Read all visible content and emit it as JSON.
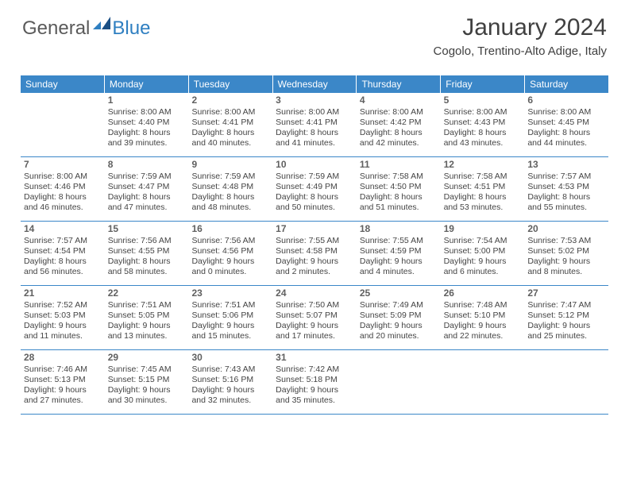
{
  "brand": {
    "word1": "General",
    "word2": "Blue"
  },
  "title": "January 2024",
  "location": "Cogolo, Trentino-Alto Adige, Italy",
  "colors": {
    "accent": "#3b87c8",
    "text": "#404040",
    "body": "#444444",
    "background": "#ffffff"
  },
  "dayHeaders": [
    "Sunday",
    "Monday",
    "Tuesday",
    "Wednesday",
    "Thursday",
    "Friday",
    "Saturday"
  ],
  "weeks": [
    [
      {
        "num": "",
        "sunrise": "",
        "sunset": "",
        "daylight": ""
      },
      {
        "num": "1",
        "sunrise": "Sunrise: 8:00 AM",
        "sunset": "Sunset: 4:40 PM",
        "daylight": "Daylight: 8 hours and 39 minutes."
      },
      {
        "num": "2",
        "sunrise": "Sunrise: 8:00 AM",
        "sunset": "Sunset: 4:41 PM",
        "daylight": "Daylight: 8 hours and 40 minutes."
      },
      {
        "num": "3",
        "sunrise": "Sunrise: 8:00 AM",
        "sunset": "Sunset: 4:41 PM",
        "daylight": "Daylight: 8 hours and 41 minutes."
      },
      {
        "num": "4",
        "sunrise": "Sunrise: 8:00 AM",
        "sunset": "Sunset: 4:42 PM",
        "daylight": "Daylight: 8 hours and 42 minutes."
      },
      {
        "num": "5",
        "sunrise": "Sunrise: 8:00 AM",
        "sunset": "Sunset: 4:43 PM",
        "daylight": "Daylight: 8 hours and 43 minutes."
      },
      {
        "num": "6",
        "sunrise": "Sunrise: 8:00 AM",
        "sunset": "Sunset: 4:45 PM",
        "daylight": "Daylight: 8 hours and 44 minutes."
      }
    ],
    [
      {
        "num": "7",
        "sunrise": "Sunrise: 8:00 AM",
        "sunset": "Sunset: 4:46 PM",
        "daylight": "Daylight: 8 hours and 46 minutes."
      },
      {
        "num": "8",
        "sunrise": "Sunrise: 7:59 AM",
        "sunset": "Sunset: 4:47 PM",
        "daylight": "Daylight: 8 hours and 47 minutes."
      },
      {
        "num": "9",
        "sunrise": "Sunrise: 7:59 AM",
        "sunset": "Sunset: 4:48 PM",
        "daylight": "Daylight: 8 hours and 48 minutes."
      },
      {
        "num": "10",
        "sunrise": "Sunrise: 7:59 AM",
        "sunset": "Sunset: 4:49 PM",
        "daylight": "Daylight: 8 hours and 50 minutes."
      },
      {
        "num": "11",
        "sunrise": "Sunrise: 7:58 AM",
        "sunset": "Sunset: 4:50 PM",
        "daylight": "Daylight: 8 hours and 51 minutes."
      },
      {
        "num": "12",
        "sunrise": "Sunrise: 7:58 AM",
        "sunset": "Sunset: 4:51 PM",
        "daylight": "Daylight: 8 hours and 53 minutes."
      },
      {
        "num": "13",
        "sunrise": "Sunrise: 7:57 AM",
        "sunset": "Sunset: 4:53 PM",
        "daylight": "Daylight: 8 hours and 55 minutes."
      }
    ],
    [
      {
        "num": "14",
        "sunrise": "Sunrise: 7:57 AM",
        "sunset": "Sunset: 4:54 PM",
        "daylight": "Daylight: 8 hours and 56 minutes."
      },
      {
        "num": "15",
        "sunrise": "Sunrise: 7:56 AM",
        "sunset": "Sunset: 4:55 PM",
        "daylight": "Daylight: 8 hours and 58 minutes."
      },
      {
        "num": "16",
        "sunrise": "Sunrise: 7:56 AM",
        "sunset": "Sunset: 4:56 PM",
        "daylight": "Daylight: 9 hours and 0 minutes."
      },
      {
        "num": "17",
        "sunrise": "Sunrise: 7:55 AM",
        "sunset": "Sunset: 4:58 PM",
        "daylight": "Daylight: 9 hours and 2 minutes."
      },
      {
        "num": "18",
        "sunrise": "Sunrise: 7:55 AM",
        "sunset": "Sunset: 4:59 PM",
        "daylight": "Daylight: 9 hours and 4 minutes."
      },
      {
        "num": "19",
        "sunrise": "Sunrise: 7:54 AM",
        "sunset": "Sunset: 5:00 PM",
        "daylight": "Daylight: 9 hours and 6 minutes."
      },
      {
        "num": "20",
        "sunrise": "Sunrise: 7:53 AM",
        "sunset": "Sunset: 5:02 PM",
        "daylight": "Daylight: 9 hours and 8 minutes."
      }
    ],
    [
      {
        "num": "21",
        "sunrise": "Sunrise: 7:52 AM",
        "sunset": "Sunset: 5:03 PM",
        "daylight": "Daylight: 9 hours and 11 minutes."
      },
      {
        "num": "22",
        "sunrise": "Sunrise: 7:51 AM",
        "sunset": "Sunset: 5:05 PM",
        "daylight": "Daylight: 9 hours and 13 minutes."
      },
      {
        "num": "23",
        "sunrise": "Sunrise: 7:51 AM",
        "sunset": "Sunset: 5:06 PM",
        "daylight": "Daylight: 9 hours and 15 minutes."
      },
      {
        "num": "24",
        "sunrise": "Sunrise: 7:50 AM",
        "sunset": "Sunset: 5:07 PM",
        "daylight": "Daylight: 9 hours and 17 minutes."
      },
      {
        "num": "25",
        "sunrise": "Sunrise: 7:49 AM",
        "sunset": "Sunset: 5:09 PM",
        "daylight": "Daylight: 9 hours and 20 minutes."
      },
      {
        "num": "26",
        "sunrise": "Sunrise: 7:48 AM",
        "sunset": "Sunset: 5:10 PM",
        "daylight": "Daylight: 9 hours and 22 minutes."
      },
      {
        "num": "27",
        "sunrise": "Sunrise: 7:47 AM",
        "sunset": "Sunset: 5:12 PM",
        "daylight": "Daylight: 9 hours and 25 minutes."
      }
    ],
    [
      {
        "num": "28",
        "sunrise": "Sunrise: 7:46 AM",
        "sunset": "Sunset: 5:13 PM",
        "daylight": "Daylight: 9 hours and 27 minutes."
      },
      {
        "num": "29",
        "sunrise": "Sunrise: 7:45 AM",
        "sunset": "Sunset: 5:15 PM",
        "daylight": "Daylight: 9 hours and 30 minutes."
      },
      {
        "num": "30",
        "sunrise": "Sunrise: 7:43 AM",
        "sunset": "Sunset: 5:16 PM",
        "daylight": "Daylight: 9 hours and 32 minutes."
      },
      {
        "num": "31",
        "sunrise": "Sunrise: 7:42 AM",
        "sunset": "Sunset: 5:18 PM",
        "daylight": "Daylight: 9 hours and 35 minutes."
      },
      {
        "num": "",
        "sunrise": "",
        "sunset": "",
        "daylight": ""
      },
      {
        "num": "",
        "sunrise": "",
        "sunset": "",
        "daylight": ""
      },
      {
        "num": "",
        "sunrise": "",
        "sunset": "",
        "daylight": ""
      }
    ]
  ]
}
